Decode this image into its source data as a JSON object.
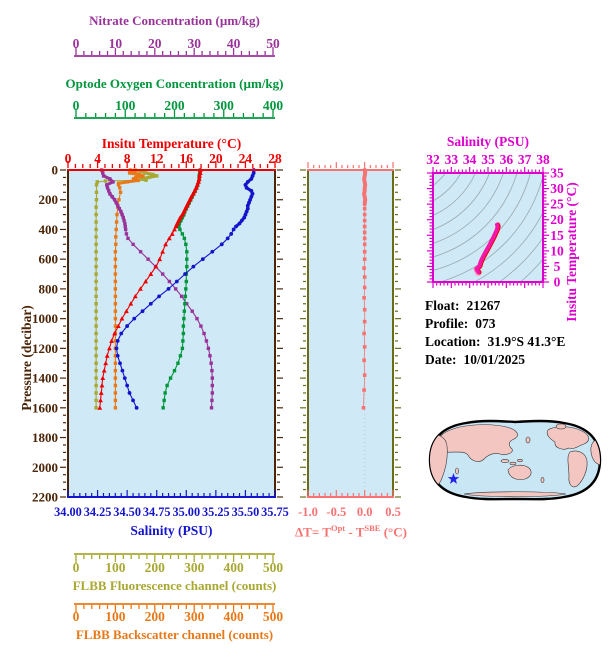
{
  "colors": {
    "background": "#ffffff",
    "plot_bg": "#cfe9f6",
    "pressure_axis": "#4b2508",
    "nitrate": "#993399",
    "oxygen": "#00963c",
    "temperature": "#ee0000",
    "salinity": "#1414cc",
    "fluorescence": "#a8a832",
    "backscatter": "#e87818",
    "delta_t": "#f87272",
    "delta_t_frame": "#6b6b1a",
    "ts_axis": "#dd00cc",
    "ts_curve": "#f318a8",
    "ts_curve_edge": "#ee0000",
    "ts_smudge": "#f8a2c4",
    "contour": "#9aa8ae",
    "map_ocean": "#c9e6f4",
    "map_land": "#f4c6c2",
    "map_outline": "#000000",
    "map_marker": "#2222ee"
  },
  "info_block": {
    "float_label": "Float:",
    "float_value": "21267",
    "profile_label": "Profile:",
    "profile_value": "073",
    "location_label": "Location:",
    "location_value": "31.9°S  41.3°E",
    "date_label": "Date:",
    "date_value": "10/01/2025"
  },
  "chart_data": [
    {
      "id": "main-profile",
      "type": "line",
      "ylabel": "Pressure (decibar)",
      "ylim": [
        0,
        2200
      ],
      "yticks": [
        0,
        200,
        400,
        600,
        800,
        1000,
        1200,
        1400,
        1600,
        1800,
        2000,
        2200
      ],
      "y_minor_step": 50,
      "axes": [
        {
          "id": "nitrate",
          "label": "Nitrate Concentration (µm/kg)",
          "color": "#993399",
          "lim": [
            0,
            50
          ],
          "ticks": [
            0,
            10,
            20,
            30,
            40,
            50
          ],
          "minor_step": 2
        },
        {
          "id": "oxygen",
          "label": "Optode Oxygen Concentration (µm/kg)",
          "color": "#00963c",
          "lim": [
            0,
            400
          ],
          "ticks": [
            0,
            100,
            200,
            300,
            400
          ],
          "minor_step": 20
        },
        {
          "id": "temperature",
          "label": "Insitu Temperature (°C)",
          "color": "#ee0000",
          "lim": [
            0,
            28
          ],
          "ticks": [
            0,
            4,
            8,
            12,
            16,
            20,
            24,
            28
          ],
          "minor_step": 1
        },
        {
          "id": "salinity",
          "label": "Salinity (PSU)",
          "color": "#1414cc",
          "lim": [
            34,
            35.75
          ],
          "ticks": [
            "34.00",
            "34.25",
            "34.50",
            "34.75",
            "35.00",
            "35.25",
            "35.50",
            "35.75"
          ],
          "minor_step": 0.05
        },
        {
          "id": "fluorescence",
          "label": "FLBB Fluorescence channel (counts)",
          "color": "#a8a832",
          "lim": [
            0,
            500
          ],
          "ticks": [
            0,
            100,
            200,
            300,
            400,
            500
          ],
          "minor_step": 20
        },
        {
          "id": "backscatter",
          "label": "FLBB Backscatter channel (counts)",
          "color": "#e87818",
          "lim": [
            0,
            500
          ],
          "ticks": [
            0,
            100,
            200,
            300,
            400,
            500
          ],
          "minor_step": 20
        }
      ],
      "series": [
        {
          "name": "fluorescence",
          "axis": "fluorescence",
          "color": "#a8a832",
          "marker": "square",
          "thick_until": 70,
          "pressure": [
            0,
            10,
            20,
            30,
            40,
            50,
            60,
            68,
            74,
            80,
            100,
            150,
            200,
            250,
            300,
            350,
            400,
            450,
            500,
            550,
            600,
            650,
            700,
            750,
            800,
            850,
            900,
            950,
            1000,
            1050,
            1100,
            1150,
            1200,
            1250,
            1300,
            1350,
            1400,
            1450,
            1500,
            1550,
            1600
          ],
          "values": [
            150,
            165,
            178,
            195,
            205,
            185,
            165,
            178,
            75,
            54,
            52,
            52,
            52,
            51,
            51,
            51,
            51,
            51,
            51,
            51,
            51,
            51,
            51,
            51,
            51,
            51,
            51,
            51,
            51,
            51,
            51,
            51,
            51,
            51,
            51,
            51,
            51,
            51,
            51,
            51,
            51
          ]
        },
        {
          "name": "backscatter",
          "axis": "backscatter",
          "color": "#e87818",
          "marker": "square",
          "thick_until": 95,
          "pressure": [
            0,
            10,
            20,
            30,
            40,
            50,
            60,
            70,
            80,
            90,
            100,
            120,
            150,
            200,
            250,
            300,
            350,
            400,
            450,
            500,
            550,
            600,
            650,
            700,
            750,
            800,
            850,
            900,
            950,
            1000,
            1050,
            1100,
            1150,
            1200,
            1250,
            1300,
            1350,
            1400,
            1450,
            1500,
            1550,
            1600
          ],
          "values": [
            138,
            150,
            136,
            160,
            170,
            152,
            146,
            158,
            130,
            108,
            108,
            111,
            113,
            109,
            106,
            104,
            103,
            102,
            101,
            101,
            100,
            100,
            100,
            100,
            100,
            100,
            100,
            100,
            100,
            100,
            100,
            100,
            100,
            100,
            100,
            100,
            100,
            100,
            100,
            100,
            100,
            100
          ]
        },
        {
          "name": "nitrate",
          "axis": "nitrate",
          "color": "#993399",
          "marker": "square",
          "thick_until": 345,
          "pressure": [
            0,
            20,
            40,
            60,
            80,
            100,
            120,
            140,
            160,
            180,
            200,
            220,
            240,
            260,
            280,
            300,
            320,
            340,
            360,
            380,
            400,
            430,
            460,
            500,
            550,
            600,
            650,
            700,
            750,
            800,
            850,
            900,
            950,
            1000,
            1050,
            1100,
            1150,
            1200,
            1250,
            1300,
            1350,
            1400,
            1450,
            1500,
            1550,
            1600
          ],
          "values": [
            6.5,
            6.8,
            7.0,
            8.6,
            9.4,
            7.8,
            8.0,
            8.3,
            8.6,
            9.2,
            9.8,
            10.2,
            10.6,
            11.0,
            11.4,
            11.7,
            12.0,
            12.2,
            12.4,
            12.5,
            12.6,
            12.8,
            13.2,
            14.5,
            16.4,
            18.3,
            20.2,
            22.0,
            23.7,
            25.3,
            26.8,
            28.1,
            29.5,
            30.7,
            31.7,
            32.5,
            33.1,
            33.6,
            34.0,
            34.3,
            34.5,
            34.6,
            34.6,
            34.6,
            34.5,
            34.4
          ]
        },
        {
          "name": "oxygen",
          "axis": "oxygen",
          "color": "#00963c",
          "marker": "square",
          "thick_until": 385,
          "pressure": [
            0,
            20,
            40,
            60,
            80,
            100,
            120,
            140,
            160,
            180,
            200,
            220,
            240,
            260,
            280,
            300,
            320,
            340,
            360,
            380,
            400,
            430,
            460,
            500,
            550,
            600,
            650,
            700,
            750,
            800,
            850,
            900,
            950,
            1000,
            1050,
            1100,
            1150,
            1200,
            1250,
            1300,
            1350,
            1400,
            1450,
            1500,
            1550,
            1600
          ],
          "values": [
            252,
            251,
            250,
            250,
            249,
            247,
            245,
            242,
            239,
            236,
            233,
            230,
            227,
            224,
            221,
            219,
            216,
            213,
            210,
            209,
            211,
            216,
            220,
            223,
            225,
            225,
            225,
            224,
            224,
            223,
            222,
            221,
            220,
            219,
            218,
            218,
            217,
            216,
            212,
            207,
            200,
            192,
            185,
            181,
            179,
            177
          ]
        },
        {
          "name": "temperature",
          "axis": "temperature",
          "color": "#ee0000",
          "marker": "triangle",
          "thick_until": 385,
          "pressure": [
            0,
            20,
            40,
            60,
            80,
            100,
            120,
            140,
            160,
            180,
            200,
            220,
            240,
            260,
            280,
            300,
            320,
            340,
            360,
            380,
            400,
            430,
            460,
            500,
            550,
            600,
            650,
            700,
            750,
            800,
            850,
            900,
            950,
            1000,
            1050,
            1100,
            1150,
            1200,
            1250,
            1300,
            1350,
            1400,
            1450,
            1500,
            1550,
            1600
          ],
          "values": [
            17.9,
            17.9,
            17.8,
            17.75,
            17.65,
            17.5,
            17.35,
            17.15,
            16.95,
            16.7,
            16.5,
            16.3,
            16.1,
            15.9,
            15.7,
            15.5,
            15.2,
            15.0,
            14.8,
            14.6,
            14.4,
            14.1,
            13.7,
            13.2,
            12.8,
            12.4,
            11.9,
            11.2,
            10.5,
            9.8,
            9.1,
            8.5,
            7.9,
            7.3,
            6.8,
            6.3,
            5.9,
            5.6,
            5.3,
            5.1,
            4.9,
            4.7,
            4.6,
            4.5,
            4.4,
            4.3
          ]
        },
        {
          "name": "salinity",
          "axis": "salinity",
          "color": "#1414cc",
          "marker": "circle",
          "thick_until": 385,
          "pressure": [
            0,
            20,
            40,
            60,
            80,
            100,
            120,
            140,
            160,
            180,
            200,
            220,
            240,
            260,
            280,
            300,
            320,
            340,
            360,
            380,
            400,
            430,
            460,
            500,
            550,
            600,
            650,
            700,
            750,
            800,
            850,
            900,
            950,
            1000,
            1050,
            1100,
            1150,
            1200,
            1250,
            1300,
            1350,
            1400,
            1450,
            1500,
            1550,
            1600
          ],
          "values": [
            35.57,
            35.57,
            35.56,
            35.55,
            35.52,
            35.5,
            35.51,
            35.55,
            35.56,
            35.55,
            35.54,
            35.53,
            35.52,
            35.52,
            35.51,
            35.5,
            35.49,
            35.47,
            35.45,
            35.42,
            35.4,
            35.38,
            35.35,
            35.3,
            35.22,
            35.14,
            35.06,
            34.99,
            34.92,
            34.85,
            34.77,
            34.7,
            34.63,
            34.56,
            34.5,
            34.45,
            34.42,
            34.41,
            34.42,
            34.44,
            34.46,
            34.48,
            34.5,
            34.52,
            34.55,
            34.58
          ]
        }
      ]
    },
    {
      "id": "delta-t",
      "type": "line",
      "xlabel_parts": {
        "prefix": "ΔT= T",
        "sup1": "Opt",
        "mid": " - T",
        "sup2": "SBE",
        "suffix": " (°C)"
      },
      "xlim": [
        -1.0,
        0.5
      ],
      "xticks": [
        "-1.0",
        "-0.5",
        "0.0",
        "0.5"
      ],
      "x_minor_step": 0.1,
      "series": [
        {
          "name": "delta-t",
          "color": "#f87272",
          "marker": "square",
          "thick_until": 235,
          "pressure": [
            0,
            20,
            40,
            60,
            80,
            100,
            120,
            140,
            160,
            180,
            200,
            230,
            260,
            300,
            340,
            380,
            420,
            460,
            500,
            550,
            600,
            660,
            720,
            790,
            860,
            940,
            1020,
            1100,
            1190,
            1280,
            1380,
            1480,
            1600
          ],
          "values": [
            0.0,
            0.01,
            0.0,
            -0.01,
            0.0,
            0.01,
            0.0,
            0.0,
            -0.01,
            0.0,
            0.01,
            0.0,
            0.0,
            0.0,
            0.0,
            0.0,
            0.0,
            0.0,
            0.0,
            0.0,
            0.0,
            -0.01,
            0.0,
            0.0,
            -0.01,
            0.0,
            0.0,
            -0.01,
            0.0,
            -0.01,
            0.0,
            -0.01,
            -0.02
          ]
        }
      ]
    },
    {
      "id": "ts-diagram",
      "type": "line",
      "xlabel": "Salinity (PSU)",
      "ylabel": "Insitu Temperature (°C)",
      "xlim": [
        32,
        38
      ],
      "ylim": [
        0,
        35
      ],
      "xticks": [
        32,
        33,
        34,
        35,
        36,
        37,
        38
      ],
      "yticks": [
        0,
        5,
        10,
        15,
        20,
        25,
        30,
        35
      ],
      "x_minor_step": 0.2,
      "y_minor_step": 1,
      "has_density_contours": true,
      "series": [
        {
          "name": "ts-curve",
          "salinity": [
            34.48,
            34.4,
            34.37,
            34.43,
            34.5,
            34.54,
            34.57,
            34.62,
            34.69,
            34.79,
            34.91,
            35.05,
            35.19,
            35.32,
            35.42,
            35.49,
            35.52,
            35.49
          ],
          "temperature": [
            3.1,
            3.8,
            4.3,
            4.6,
            4.9,
            5.3,
            6.0,
            6.8,
            7.7,
            8.8,
            10.1,
            11.6,
            13.2,
            14.7,
            16.0,
            17.0,
            17.9,
            18.4
          ]
        },
        {
          "name": "ts-bottom-smudge",
          "salinity": [
            34.46,
            34.37
          ],
          "temperature": [
            2.9,
            4.1
          ]
        }
      ]
    },
    {
      "id": "world-map",
      "type": "map",
      "marker": {
        "symbol": "star",
        "color": "#2222ee"
      }
    }
  ]
}
